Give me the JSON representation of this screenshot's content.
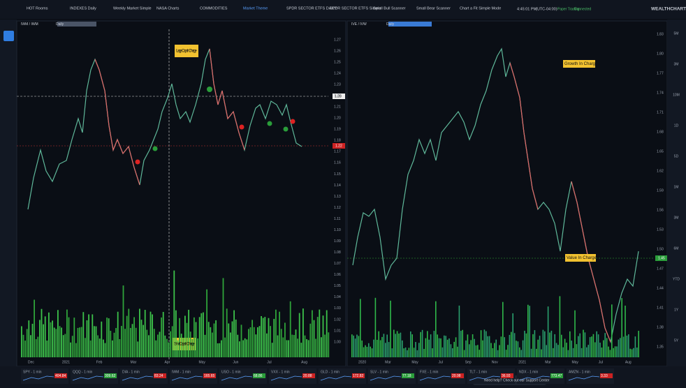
{
  "nav": {
    "tabs": [
      "HOT Rooms",
      "INDEXES Daily",
      "Weekly Market Simple",
      "NASA Charts",
      "COMMODITIES",
      "Market Theme",
      "SPDR SECTOR ETFS DAILY",
      "SPDR SECTOR ETFS Simple",
      "Small Bull Scanner",
      "Small Bear Scanner",
      "Chart a Fit Simple Mode"
    ],
    "active_tab": "Market Theme",
    "time": "4:45:01 PM",
    "timezone": "(UTC-04:00)",
    "mode": "Paper Trading",
    "status": "Connected",
    "brand": "WEALTHCHARTS"
  },
  "left_chart": {
    "symbol": "IWM / IWM",
    "interval": "Daily",
    "annotations": [
      "Large Caps In Charge",
      "Small Caps In Charge"
    ],
    "yticks": [
      "1.27",
      "1.26",
      "1.25",
      "1.24",
      "1.23",
      "1.22",
      "1.21",
      "1.20",
      "1.19",
      "1.18",
      "1.17",
      "1.16",
      "1.15",
      "1.14",
      "1.13",
      "1.12",
      "1.11",
      "1.10",
      "1.09",
      "1.08",
      "1.07",
      "1.06",
      "1.05",
      "1.04",
      "1.03",
      "1.02",
      "1.01",
      "1.00"
    ],
    "crosshair_label": "1.28",
    "last_label": "1.22",
    "x_labels": [
      "Dec",
      "2021",
      "Feb",
      "Mar",
      "Apr",
      "May",
      "Jun",
      "Jul",
      "Aug"
    ]
  },
  "right_chart": {
    "symbol": "IVE / IVW",
    "interval": "Daily",
    "annotations": [
      "Growth In Charge",
      "Value In Charge"
    ],
    "yticks": [
      "1.83",
      "1.80",
      "1.77",
      "1.74",
      "1.71",
      "1.68",
      "1.65",
      "1.62",
      "1.59",
      "1.56",
      "1.53",
      "1.50",
      "1.47",
      "1.44",
      "1.41",
      "1.38",
      "1.35"
    ],
    "last_label": "1.45",
    "x_labels": [
      "2020",
      "Mar",
      "May",
      "Jul",
      "Sep",
      "Nov",
      "2021",
      "Mar",
      "May",
      "Jul",
      "Aug"
    ]
  },
  "timeframes": [
    "5M",
    "3M",
    "10M",
    "1D",
    "5D",
    "1M",
    "3M",
    "6M",
    "YTD",
    "1Y",
    "5Y"
  ],
  "watchlist": [
    {
      "symbol": "SPY - 1 min",
      "price": "404.84"
    },
    {
      "symbol": "QQQ - 1 min",
      "price": "309.62"
    },
    {
      "symbol": "DIA - 1 min",
      "price": "83.24"
    },
    {
      "symbol": "IWM - 1 min",
      "price": "165.65"
    },
    {
      "symbol": "USO - 1 min",
      "price": "68.86"
    },
    {
      "symbol": "VXX - 1 min",
      "price": "20.88"
    },
    {
      "symbol": "GLD - 1 min",
      "price": "172.82"
    },
    {
      "symbol": "SLV - 1 min",
      "price": "77.18"
    },
    {
      "symbol": "FXE - 1 min",
      "price": "20.98"
    },
    {
      "symbol": "TLT - 1 min",
      "price": "36.93"
    },
    {
      "symbol": "NDX - 1 min",
      "price": "773.47"
    },
    {
      "symbol": "AMZN - 1 min",
      "price": "3.33"
    }
  ],
  "help": "Need help? Check out our Support Center"
}
